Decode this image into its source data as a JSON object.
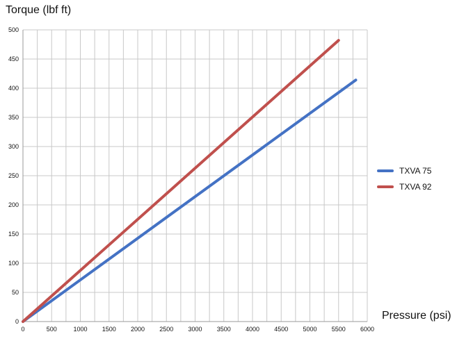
{
  "chart_data": {
    "type": "line",
    "title": "",
    "xlabel": "Pressure (psi)",
    "ylabel": "Torque (lbf ft)",
    "xlim": [
      0,
      6000
    ],
    "ylim": [
      0,
      500
    ],
    "x_ticks": [
      0,
      500,
      1000,
      1500,
      2000,
      2500,
      3000,
      3500,
      4000,
      4500,
      5000,
      5500,
      6000
    ],
    "y_ticks": [
      0,
      50,
      100,
      150,
      200,
      250,
      300,
      350,
      400,
      450,
      500
    ],
    "x_grid_minor_step": 250,
    "grid": true,
    "legend_position": "right",
    "series": [
      {
        "name": "TXVA 75",
        "color": "#4472c4",
        "x": [
          0,
          5800
        ],
        "y": [
          0,
          414
        ]
      },
      {
        "name": "TXVA 92",
        "color": "#c0504d",
        "x": [
          0,
          5500
        ],
        "y": [
          0,
          482
        ]
      }
    ]
  }
}
